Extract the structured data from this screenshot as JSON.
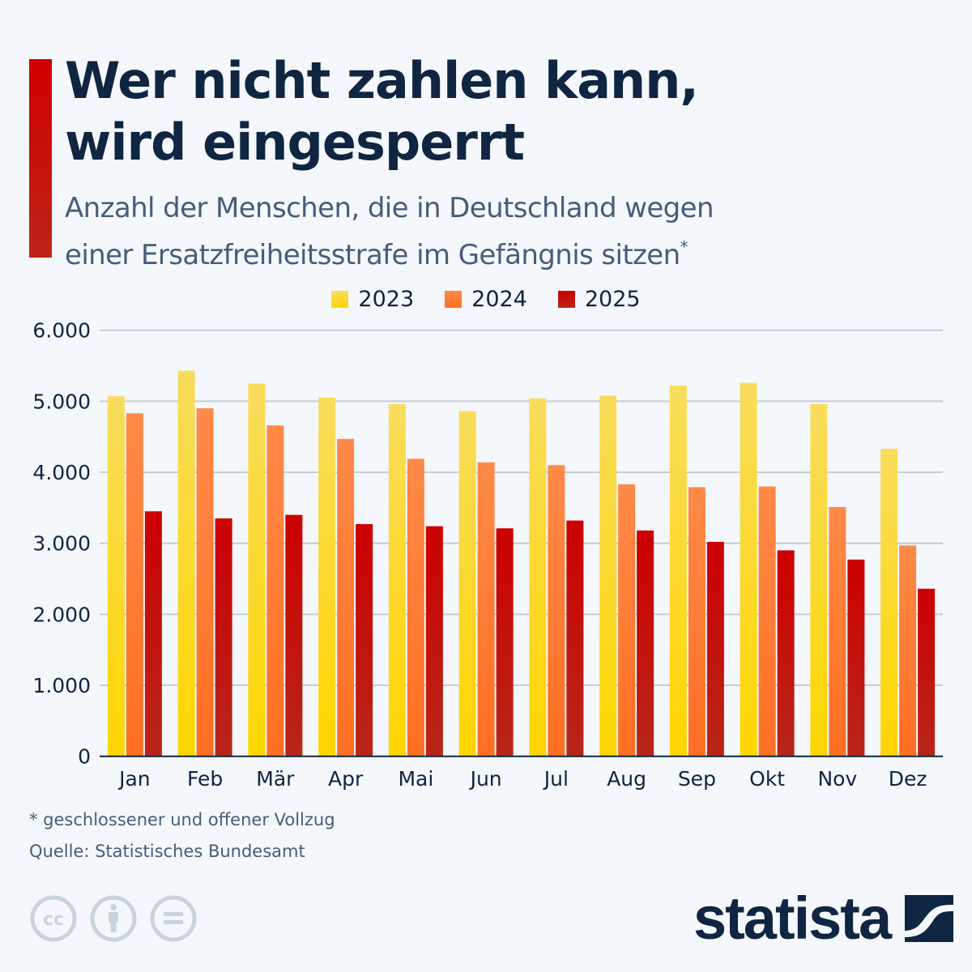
{
  "header": {
    "title_line1": "Wer nicht zahlen kann,",
    "title_line2": "wird eingesperrt",
    "subtitle_line1": "Anzahl der Menschen, die in Deutschland wegen",
    "subtitle_line2": "einer Ersatzfreiheitsstrafe im Gefängnis sitzen",
    "subtitle_marker": "*",
    "accent_color": "#d00000"
  },
  "chart_data": {
    "type": "bar",
    "title": "Wer nicht zahlen kann, wird eingesperrt",
    "subtitle": "Anzahl der Menschen, die in Deutschland wegen einer Ersatzfreiheitsstrafe im Gefängnis sitzen*",
    "xlabel": "",
    "ylabel": "",
    "categories": [
      "Jan",
      "Feb",
      "Mär",
      "Apr",
      "Mai",
      "Jun",
      "Jul",
      "Aug",
      "Sep",
      "Okt",
      "Nov",
      "Dez"
    ],
    "series": [
      {
        "name": "2023",
        "color_top": "#f9dc5c",
        "color_bottom": "#ffd600",
        "values": [
          5070,
          5430,
          5250,
          5050,
          4960,
          4860,
          5040,
          5080,
          5220,
          5260,
          4960,
          4330
        ]
      },
      {
        "name": "2024",
        "color_top": "#ff8a48",
        "color_bottom": "#ff6f22",
        "values": [
          4830,
          4900,
          4660,
          4470,
          4190,
          4140,
          4100,
          3830,
          3790,
          3800,
          3510,
          2970
        ]
      },
      {
        "name": "2025",
        "color_top": "#cc0000",
        "color_bottom": "#b8261a",
        "values": [
          3450,
          3350,
          3400,
          3270,
          3240,
          3210,
          3320,
          3180,
          3020,
          2900,
          2770,
          2360
        ]
      }
    ],
    "ylim": [
      0,
      6000
    ],
    "yticks": [
      0,
      1000,
      2000,
      3000,
      4000,
      5000,
      6000
    ],
    "ytick_labels": [
      "0",
      "1.000",
      "2.000",
      "3.000",
      "4.000",
      "5.000",
      "6.000"
    ],
    "grid": true,
    "legend_position": "top-center"
  },
  "footer": {
    "footnote": "* geschlossener und offener Vollzug",
    "source": "Quelle: Statistisches Bundesamt",
    "license_icons": [
      "cc-icon",
      "attribution-icon",
      "no-derivatives-icon"
    ],
    "brand": "statista"
  }
}
